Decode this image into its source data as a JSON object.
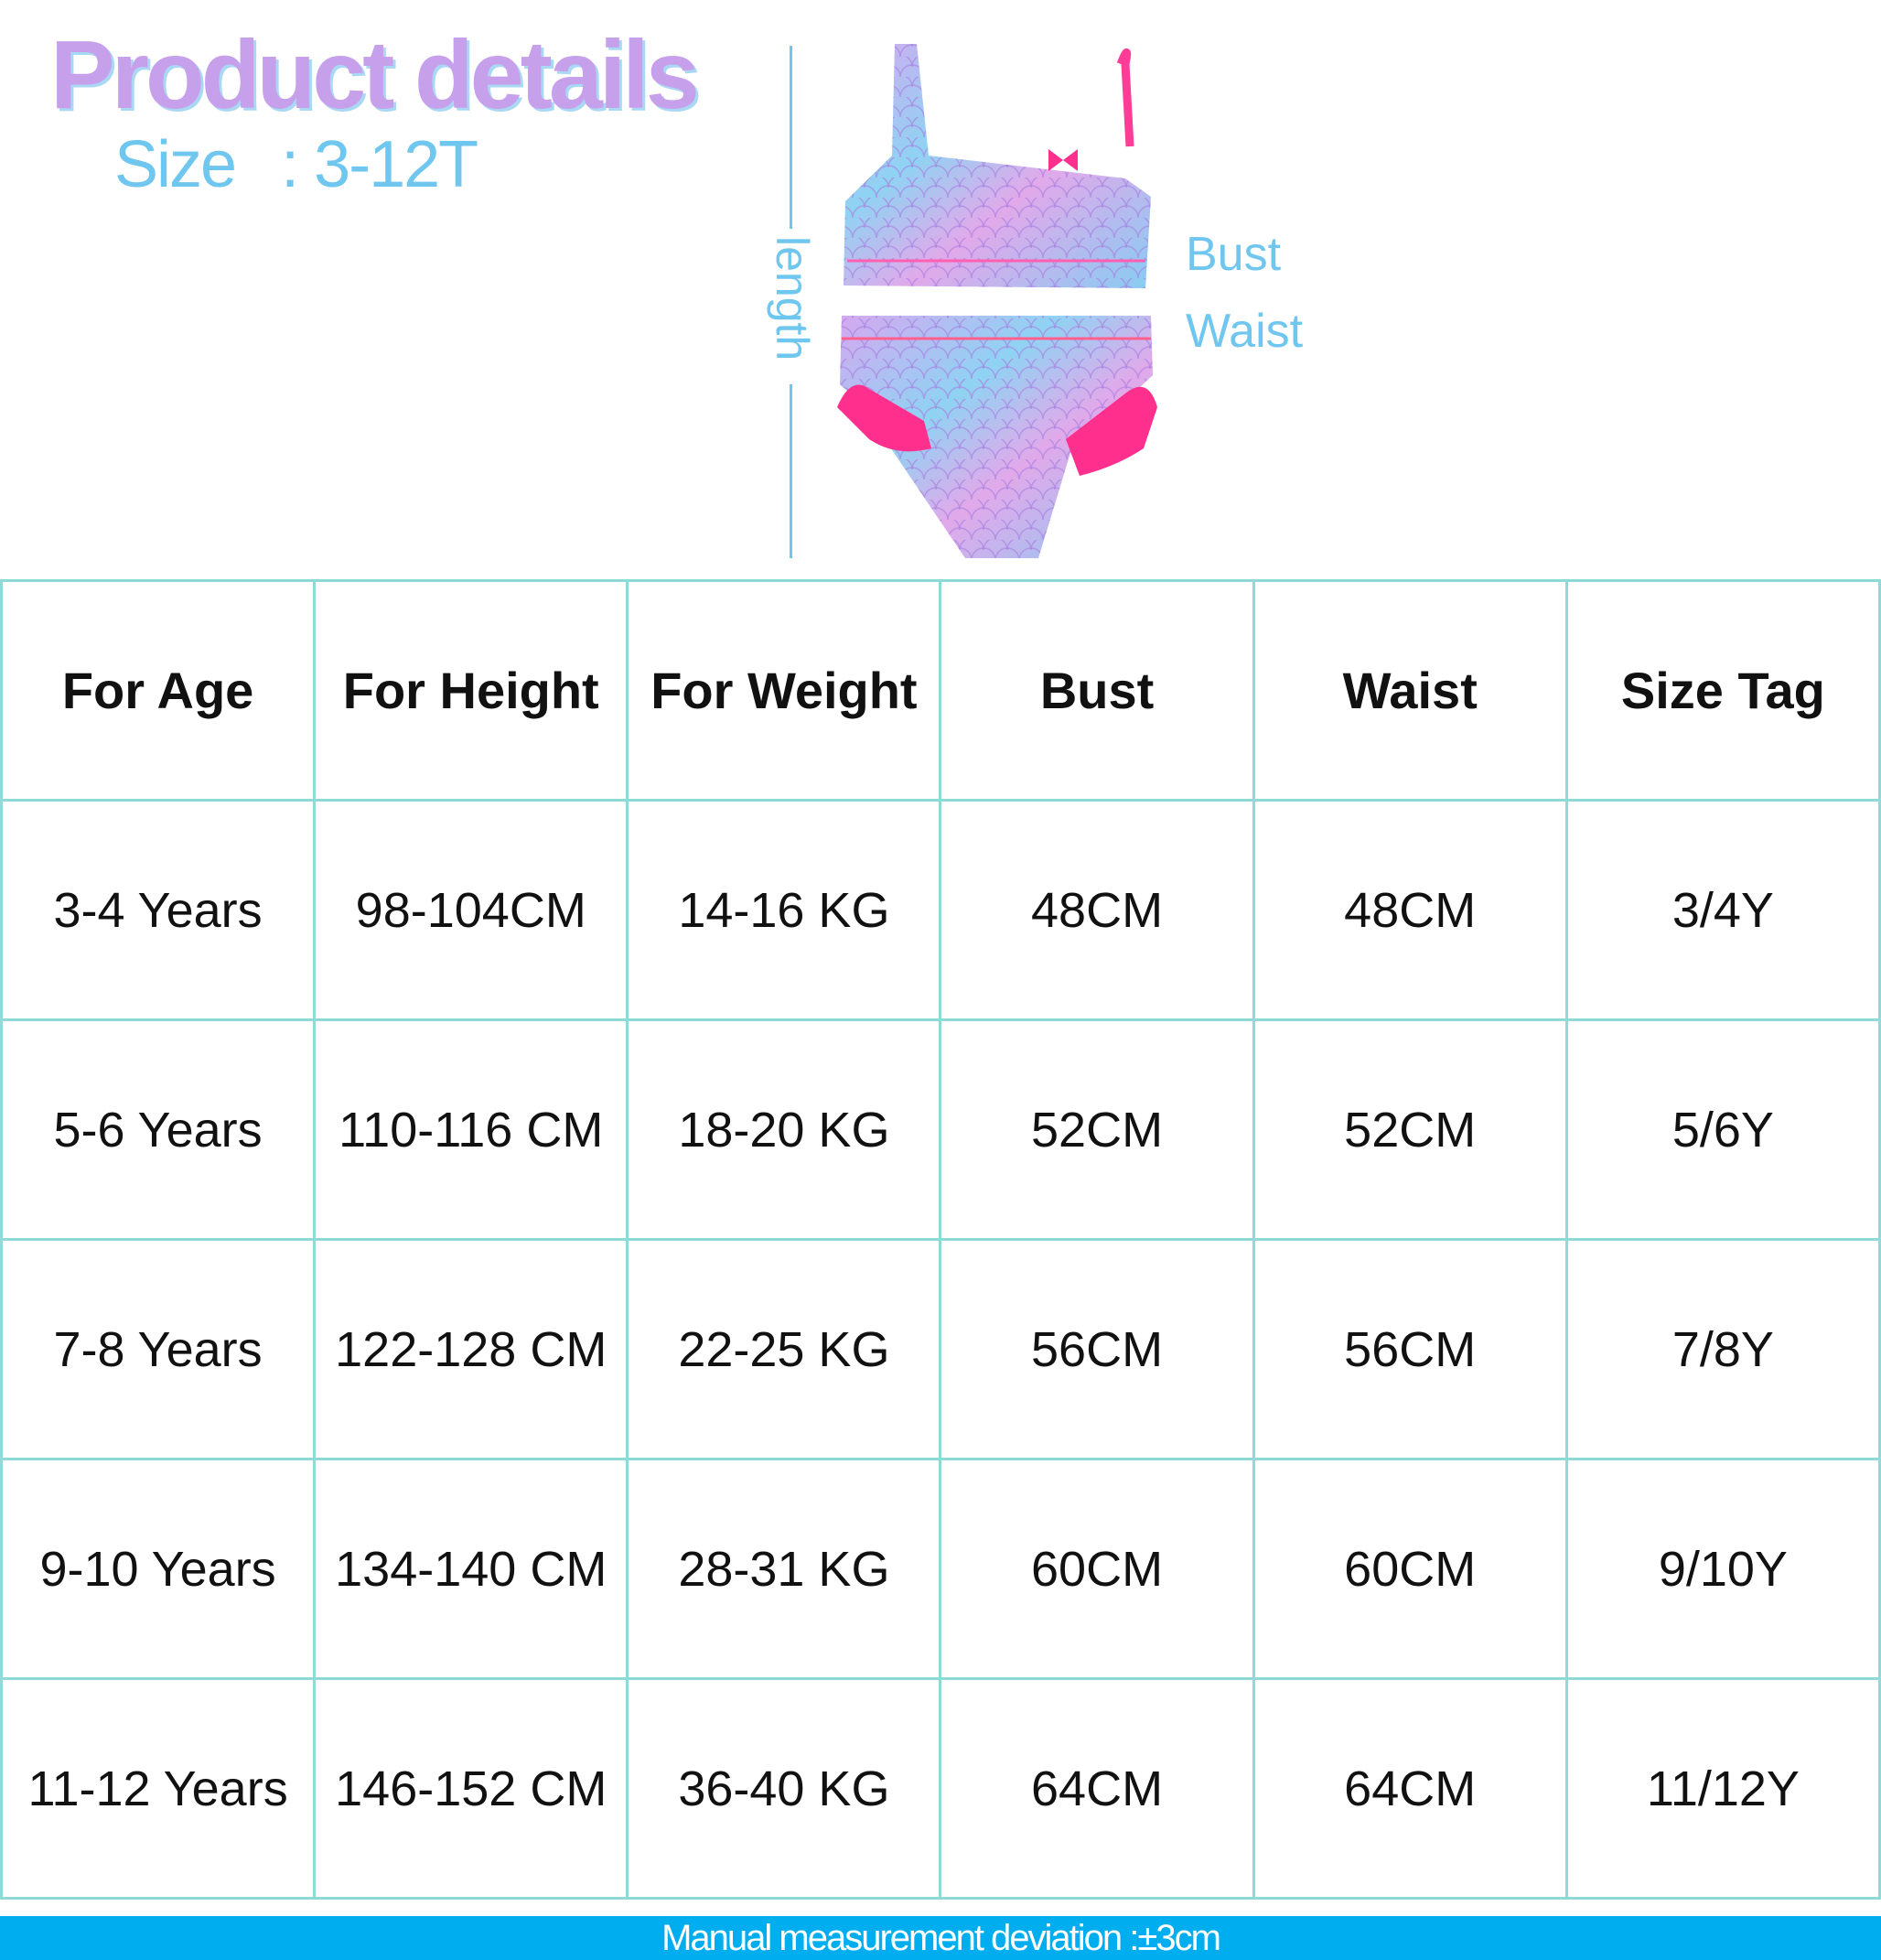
{
  "header": {
    "title": "Product details",
    "size_label": "Size",
    "size_value": ": 3-12T"
  },
  "diagram": {
    "length_label": "length",
    "bust_label": "Bust",
    "waist_label": "Waist",
    "colors": {
      "accent_blue": "#6fc6ee",
      "title_purple": "#c7a0ec",
      "ruffle_pink": "#ff2f8e"
    }
  },
  "table": {
    "headers": [
      "For Age",
      "For Height",
      "For Weight",
      "Bust",
      "Waist",
      "Size Tag"
    ],
    "rows": [
      [
        "3-4 Years",
        "98-104CM",
        "14-16 KG",
        "48CM",
        "48CM",
        "3/4Y"
      ],
      [
        "5-6 Years",
        "110-116 CM",
        "18-20 KG",
        "52CM",
        "52CM",
        "5/6Y"
      ],
      [
        "7-8 Years",
        "122-128 CM",
        "22-25 KG",
        "56CM",
        "56CM",
        "7/8Y"
      ],
      [
        "9-10 Years",
        "134-140 CM",
        "28-31 KG",
        "60CM",
        "60CM",
        "9/10Y"
      ],
      [
        "11-12 Years",
        "146-152 CM",
        "36-40 KG",
        "64CM",
        "64CM",
        "11/12Y"
      ]
    ]
  },
  "footer": {
    "note": "Manual measurement deviation :±3cm",
    "color": "#00aeef"
  }
}
